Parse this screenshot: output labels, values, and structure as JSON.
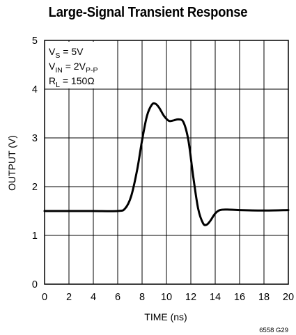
{
  "chart_data": {
    "type": "line",
    "title": "Large-Signal Transient Response",
    "xlabel": "TIME (ns)",
    "ylabel": "OUTPUT (V)",
    "xlim": [
      0,
      20
    ],
    "ylim": [
      0,
      5
    ],
    "x_ticks": [
      "0",
      "2",
      "4",
      "6",
      "8",
      "10",
      "12",
      "14",
      "16",
      "18",
      "20"
    ],
    "y_ticks": [
      "0",
      "1",
      "2",
      "3",
      "4",
      "5"
    ],
    "grid": true,
    "annotations": {
      "vs_main": "V",
      "vs_sub": "S",
      "vs_rest": " = 5V",
      "vin_main": "V",
      "vin_sub": "IN",
      "vin_rest": " = 2V",
      "vin_sub2": "P-P",
      "rl_main": "R",
      "rl_sub": "L",
      "rl_rest": " = 150Ω"
    },
    "figure_id": "6558 G29",
    "series": [
      {
        "x": [
          0,
          2,
          4,
          6,
          6.6,
          7.1,
          7.6,
          8.0,
          8.4,
          8.8,
          9.1,
          9.4,
          9.8,
          10.2,
          10.6,
          11.0,
          11.4,
          11.8,
          12.2,
          12.6,
          13.0,
          13.3,
          13.6,
          14.0,
          14.4,
          15.0,
          16.0,
          18.0,
          20.0
        ],
        "y": [
          1.5,
          1.5,
          1.5,
          1.5,
          1.55,
          1.8,
          2.35,
          2.95,
          3.45,
          3.68,
          3.7,
          3.62,
          3.45,
          3.35,
          3.36,
          3.38,
          3.32,
          2.95,
          2.2,
          1.55,
          1.25,
          1.22,
          1.3,
          1.45,
          1.52,
          1.53,
          1.52,
          1.51,
          1.52
        ]
      }
    ]
  }
}
